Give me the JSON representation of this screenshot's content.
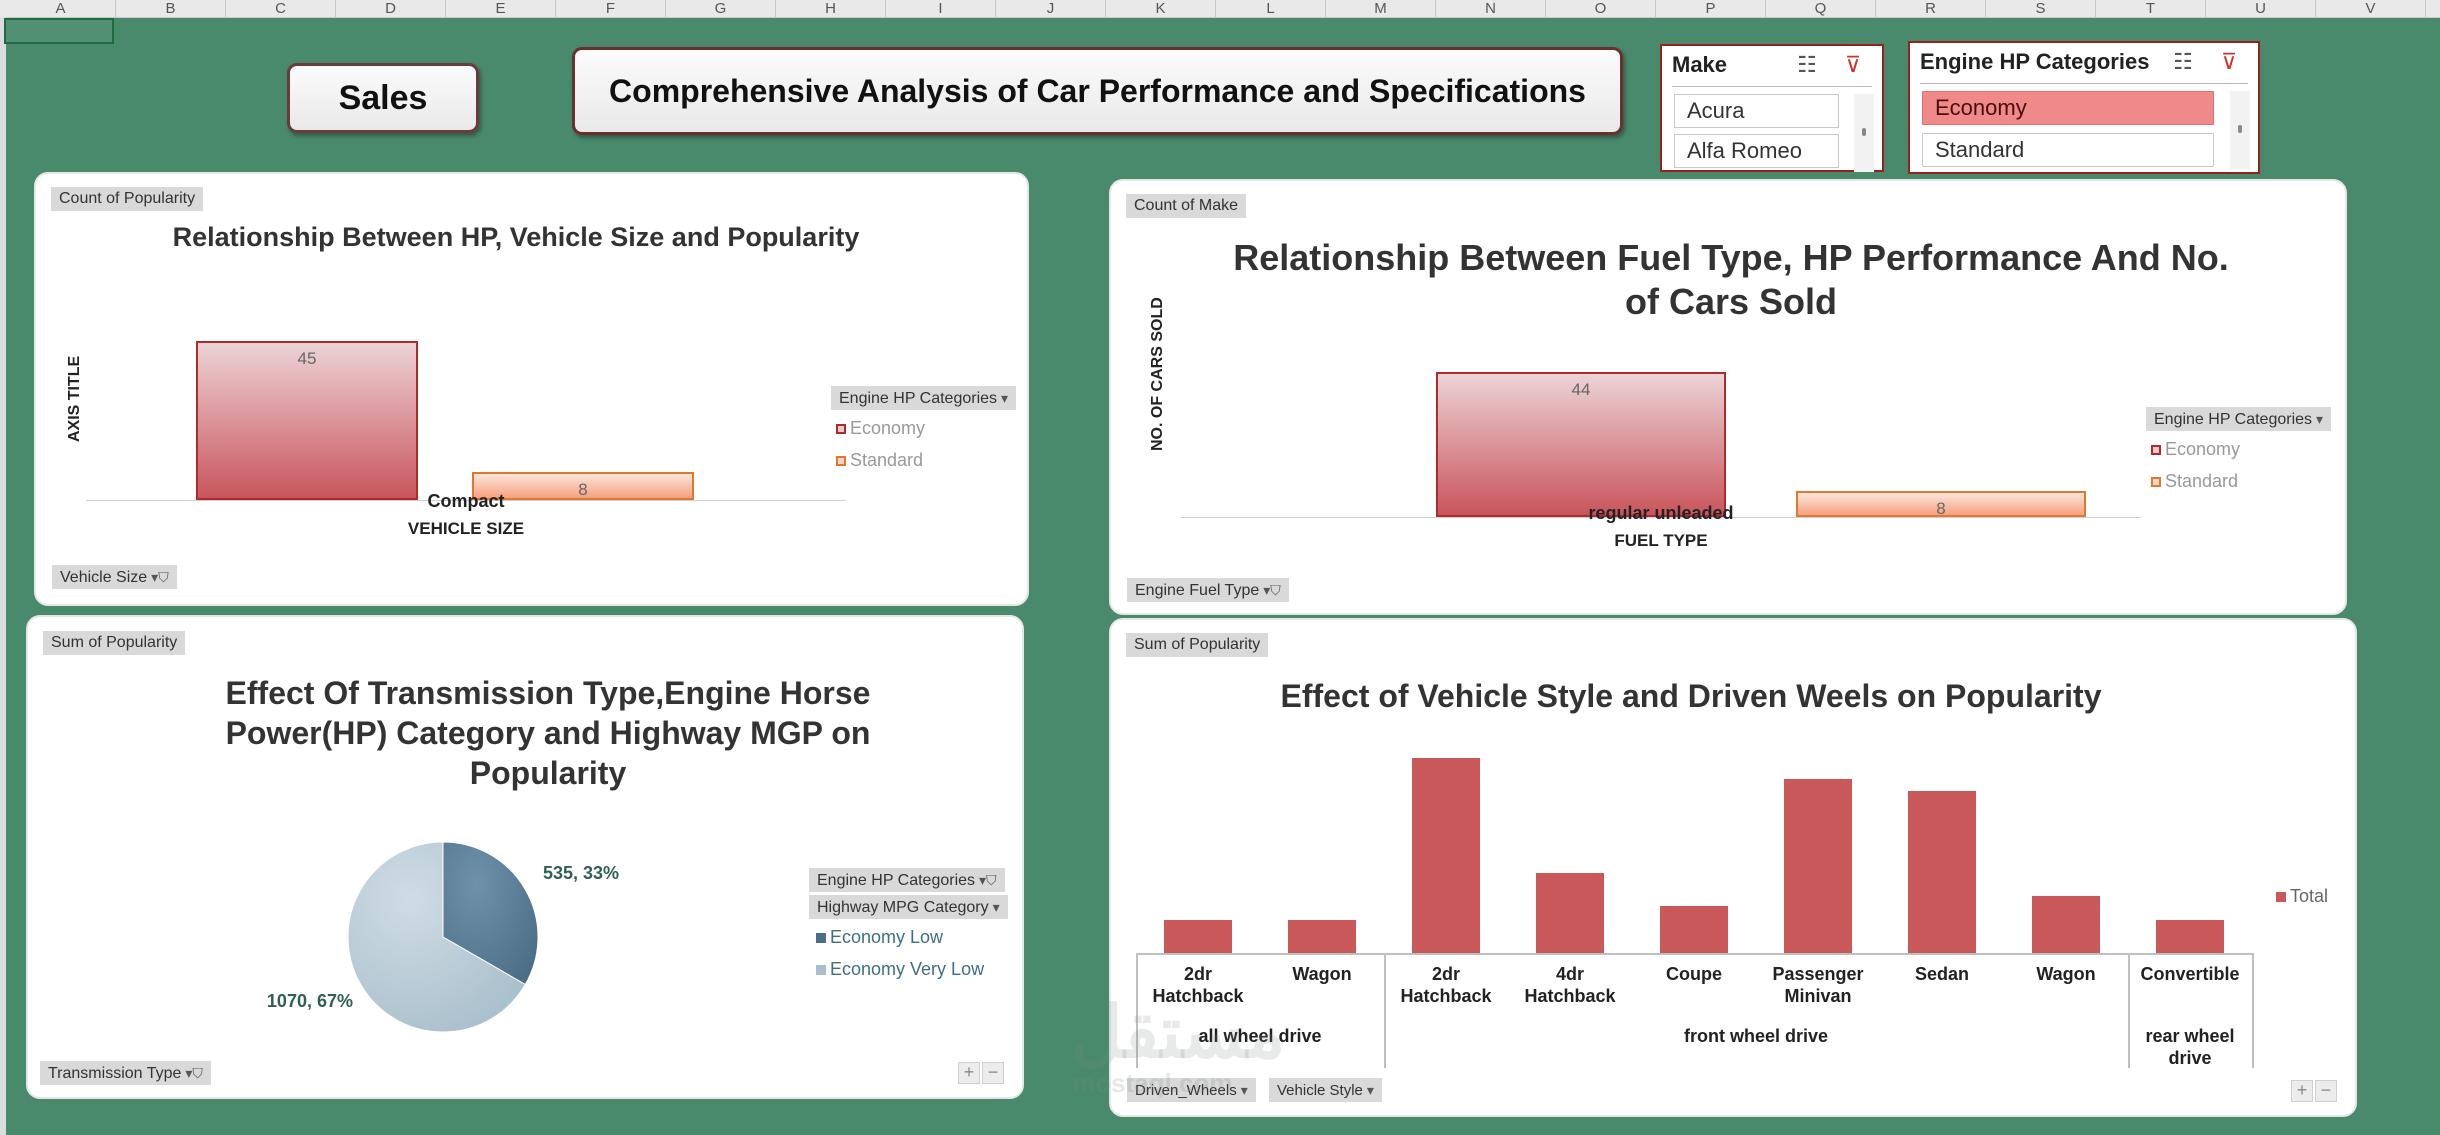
{
  "spreadsheet": {
    "columns": [
      "A",
      "B",
      "C",
      "D",
      "E",
      "F",
      "G",
      "H",
      "I",
      "J",
      "K",
      "L",
      "M",
      "N",
      "O",
      "P",
      "Q",
      "R",
      "S",
      "T",
      "U",
      "V"
    ]
  },
  "header": {
    "sales_button": "Sales",
    "main_title": "Comprehensive Analysis of Car Performance and Specifications"
  },
  "slicers": {
    "make": {
      "title": "Make",
      "items": [
        "Acura",
        "Alfa Romeo"
      ]
    },
    "hp": {
      "title": "Engine HP Categories",
      "items": [
        "Economy",
        "Standard"
      ],
      "selected": "Economy"
    }
  },
  "chart1": {
    "value_field": "Count of Popularity",
    "axis_field": "Vehicle Size",
    "legend_field": "Engine HP Categories",
    "chart_data": {
      "type": "bar",
      "title": "Relationship Between HP, Vehicle Size and Popularity",
      "ylabel": "AXIS TITLE",
      "xlabel": "VEHICLE SIZE",
      "categories": [
        "Compact"
      ],
      "series": [
        {
          "name": "Economy",
          "values": [
            45
          ]
        },
        {
          "name": "Standard",
          "values": [
            8
          ]
        }
      ]
    }
  },
  "chart2": {
    "value_field": "Count of Make",
    "axis_field": "Engine Fuel Type",
    "legend_field": "Engine HP Categories",
    "chart_data": {
      "type": "bar",
      "title": "Relationship Between Fuel Type, HP Performance  And No. of Cars Sold",
      "ylabel": "NO. OF CARS SOLD",
      "xlabel": "FUEL TYPE",
      "categories": [
        "regular unleaded"
      ],
      "series": [
        {
          "name": "Economy",
          "values": [
            44
          ]
        },
        {
          "name": "Standard",
          "values": [
            8
          ]
        }
      ]
    }
  },
  "chart3": {
    "value_field": "Sum of Popularity",
    "axis_field": "Transmission Type",
    "legend_fields": [
      "Engine HP Categories",
      "Highway MPG Category"
    ],
    "chart_data": {
      "type": "pie",
      "title": "Effect Of Transmission Type,Engine Horse Power(HP) Category and Highway MGP on Popularity",
      "slices": [
        {
          "name": "Economy Low",
          "value": 535,
          "label": "535, 33%",
          "color": "#4c6f87"
        },
        {
          "name": "Economy Very Low",
          "value": 1070,
          "label": "1070, 67%",
          "color": "#a9bfcc"
        }
      ]
    }
  },
  "chart4": {
    "value_field": "Sum of Popularity",
    "axis_fields": [
      "Driven_Wheels",
      "Vehicle Style"
    ],
    "chart_data": {
      "type": "bar",
      "title": "Effect of Vehicle Style and Driven Weels on Popularity",
      "legend": [
        "Total"
      ],
      "groups": [
        {
          "name": "all wheel drive",
          "categories": [
            "2dr Hatchback",
            "Wagon"
          ]
        },
        {
          "name": "front wheel drive",
          "categories": [
            "2dr Hatchback",
            "4dr Hatchback",
            "Coupe",
            "Passenger Minivan",
            "Sedan",
            "Wagon"
          ]
        },
        {
          "name": "rear wheel drive",
          "categories": [
            "Convertible"
          ]
        }
      ],
      "series": [
        {
          "name": "Total",
          "values": [
            0.17,
            0.17,
            1.0,
            0.41,
            0.24,
            0.89,
            0.83,
            0.29,
            0.17
          ]
        }
      ]
    }
  }
}
